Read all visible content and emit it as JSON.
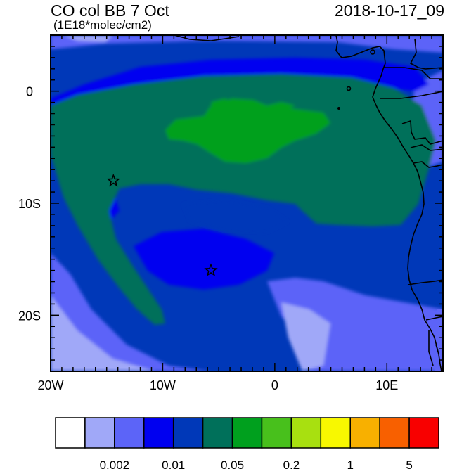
{
  "header": {
    "title": "CO col BB 7 Oct",
    "subtitle": "(1E18*molec/cm2)",
    "datetime": "2018-10-17_09"
  },
  "map": {
    "lon_range": [
      -20,
      15
    ],
    "lat_range": [
      -25,
      5
    ],
    "xticks": [
      {
        "value": -20,
        "label": "20W"
      },
      {
        "value": -10,
        "label": "10W"
      },
      {
        "value": 0,
        "label": "0"
      },
      {
        "value": 10,
        "label": "10E"
      }
    ],
    "yticks": [
      {
        "value": 0,
        "label": "0"
      },
      {
        "value": -10,
        "label": "10S"
      },
      {
        "value": -20,
        "label": "20S"
      }
    ],
    "markers": [
      {
        "name": "star-marker-west",
        "lon": -14.4,
        "lat": -8.0
      },
      {
        "name": "star-marker-south",
        "lon": -5.7,
        "lat": -16.0
      }
    ]
  },
  "colorbar": {
    "colors": [
      "#ffffff",
      "#a0a8f8",
      "#5c64f8",
      "#0000f0",
      "#0038b8",
      "#00705a",
      "#00a01e",
      "#48c01c",
      "#a8e010",
      "#f8f800",
      "#f8b000",
      "#f86000",
      "#f80000"
    ],
    "labels": [
      {
        "after_box": 2,
        "text": "0.002"
      },
      {
        "after_box": 4,
        "text": "0.01"
      },
      {
        "after_box": 6,
        "text": "0.05"
      },
      {
        "after_box": 8,
        "text": "0.2"
      },
      {
        "after_box": 10,
        "text": "1"
      },
      {
        "after_box": 12,
        "text": "5"
      }
    ]
  }
}
